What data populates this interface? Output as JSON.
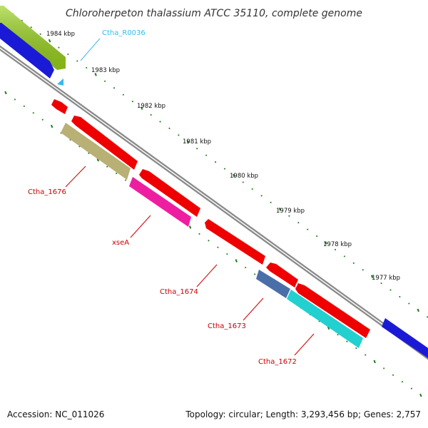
{
  "title": "Chloroherpeton thalassium ATCC 35110, complete genome",
  "footer": {
    "accession": "Accession: NC_011026",
    "summary": "Topology: circular; Length: 3,293,456 bp; Genes: 2,757"
  },
  "ticks": [
    "1984 kbp",
    "1983 kbp",
    "1982 kbp",
    "1981 kbp",
    "1980 kbp",
    "1979 kbp",
    "1978 kbp",
    "1977 kbp"
  ],
  "genes": [
    {
      "label": "Ctha_R0036",
      "color": "#33bbee"
    },
    {
      "label": "Ctha_1676",
      "color": "#cc0000"
    },
    {
      "label": "xseA",
      "color": "#cc0000"
    },
    {
      "label": "Ctha_1674",
      "color": "#cc0000"
    },
    {
      "label": "Ctha_1673",
      "color": "#cc0000"
    },
    {
      "label": "Ctha_1672",
      "color": "#cc0000"
    }
  ],
  "colors": {
    "backbone": "#8a8a8a",
    "cds": "#ee0000",
    "blue_feature": "#1a1ad6",
    "green_feature": "#9ad21e",
    "olive_feature": "#b8b074",
    "magenta_feature": "#ee1ea0",
    "steel_feature": "#4a6ea8",
    "cyan_feature": "#22d0d0",
    "trna_feature": "#33bbee",
    "tick_dots": "#1e7a1e"
  }
}
